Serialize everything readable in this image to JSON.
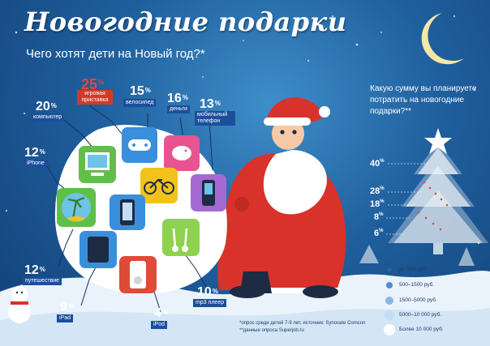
{
  "title": "Новогодние подарки",
  "subtitle": "Чего хотят дети на Новый год?*",
  "chart_data": [
    {
      "type": "bar",
      "title": "Чего хотят дети на Новый год?*",
      "categories": [
        "игровая приставка",
        "компьютер",
        "велосипед",
        "деньги",
        "мобильный телефон",
        "iPhone",
        "путешествие",
        "mp3 плеер",
        "iPad",
        "iPod"
      ],
      "values": [
        25,
        20,
        15,
        16,
        13,
        12,
        12,
        10,
        9,
        4
      ],
      "unit": "%"
    },
    {
      "type": "bar",
      "title": "Какую сумму вы планируете потратить на новогодние подарки?**",
      "categories": [
        "до 500 руб.",
        "500–1500 руб.",
        "1500–5000 руб.",
        "5000–10 000 руб.",
        "Более 10 000 руб."
      ],
      "values": [
        6,
        8,
        18,
        28,
        40
      ],
      "unit": "%"
    }
  ],
  "gifts": [
    {
      "label": "игровая приставка",
      "value": "25",
      "unit": "%",
      "color": "#e04b38",
      "icon": "gamepad-icon"
    },
    {
      "label": "компьютер",
      "value": "20",
      "unit": "%",
      "color": "#ffffff",
      "icon": "computer-icon"
    },
    {
      "label": "велосипед",
      "value": "15",
      "unit": "%",
      "color": "#ffffff",
      "icon": "bicycle-icon"
    },
    {
      "label": "деньги",
      "value": "16",
      "unit": "%",
      "color": "#ffffff",
      "icon": "piggy-bank-icon"
    },
    {
      "label": "мобильный телефон",
      "value": "13",
      "unit": "%",
      "color": "#ffffff",
      "icon": "mobile-phone-icon"
    },
    {
      "label": "iPhone",
      "value": "12",
      "unit": "%",
      "color": "#ffffff",
      "icon": "iphone-icon"
    },
    {
      "label": "путешествие",
      "value": "12",
      "unit": "%",
      "color": "#ffffff",
      "icon": "palm-island-icon"
    },
    {
      "label": "mp3 плеер",
      "value": "10",
      "unit": "%",
      "color": "#ffffff",
      "icon": "mp3-player-icon"
    },
    {
      "label": "iPad",
      "value": "9",
      "unit": "%",
      "color": "#ffffff",
      "icon": "ipad-icon"
    },
    {
      "label": "iPod",
      "value": "4",
      "unit": "%",
      "color": "#ffffff",
      "icon": "ipod-icon"
    }
  ],
  "budget": {
    "question": "Какую сумму вы планируете потратить на новогодние подарки?**",
    "values": [
      {
        "value": "40",
        "unit": "%"
      },
      {
        "value": "28",
        "unit": "%"
      },
      {
        "value": "18",
        "unit": "%"
      },
      {
        "value": "8",
        "unit": "%"
      },
      {
        "value": "6",
        "unit": "%"
      }
    ],
    "legend": [
      {
        "label": "до 500 руб.",
        "color": "#2a67b3"
      },
      {
        "label": "500–1500 руб.",
        "color": "#4f8cd0"
      },
      {
        "label": "1500–5000 руб.",
        "color": "#86b8e6"
      },
      {
        "label": "5000–10 000 руб.",
        "color": "#c3def4"
      },
      {
        "label": "Более 10 000 руб.",
        "color": "#ffffff"
      }
    ]
  },
  "footnotes": {
    "note1": "*опрос среди детей 7-9 лет, источник: Synovate Comcon",
    "note2": "**данные опроса Superjob.ru"
  },
  "colors": {
    "accent": "#e04b38",
    "sky": "#1f5f9e",
    "snow": "#eaf3fb",
    "moon": "#f5e6a8"
  }
}
